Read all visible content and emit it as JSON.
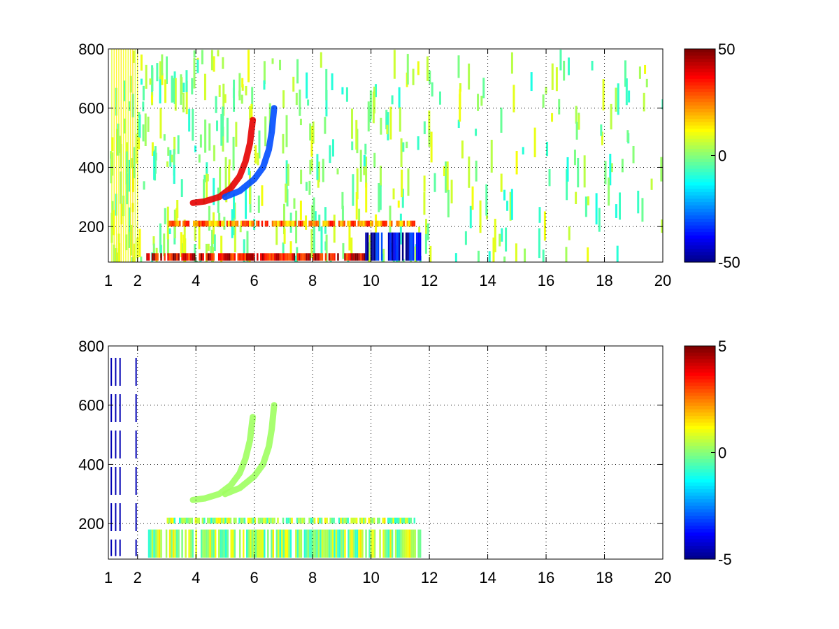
{
  "chart_data": [
    {
      "type": "heatmap",
      "title": "",
      "xlabel": "",
      "ylabel": "",
      "xlim": [
        1,
        20
      ],
      "ylim": [
        80,
        800
      ],
      "xticks": [
        1,
        2,
        4,
        6,
        8,
        10,
        12,
        14,
        16,
        18,
        20
      ],
      "xtick_labels": [
        "1",
        "2",
        "4",
        "6",
        "8",
        "10",
        "12",
        "14",
        "16",
        "18",
        "20"
      ],
      "yticks": [
        200,
        400,
        600,
        800
      ],
      "ytick_labels": [
        "200",
        "400",
        "600",
        "800"
      ],
      "grid": true,
      "colormap": "jet",
      "colorbar": {
        "clim": [
          -50,
          50
        ],
        "tick_labels": [
          "50",
          "0",
          "-50"
        ],
        "ticks": [
          50,
          0,
          -50
        ]
      },
      "features": [
        {
          "kind": "curve",
          "sign": "positive",
          "value": 40,
          "points": [
            [
              3.9,
              280
            ],
            [
              4.3,
              285
            ],
            [
              4.8,
              300
            ],
            [
              5.2,
              330
            ],
            [
              5.5,
              370
            ],
            [
              5.7,
              420
            ],
            [
              5.85,
              480
            ],
            [
              5.95,
              560
            ]
          ]
        },
        {
          "kind": "curve",
          "sign": "negative",
          "value": -30,
          "points": [
            [
              5.0,
              300
            ],
            [
              5.5,
              320
            ],
            [
              6.0,
              360
            ],
            [
              6.3,
              400
            ],
            [
              6.5,
              460
            ],
            [
              6.6,
              520
            ],
            [
              6.68,
              600
            ]
          ]
        },
        {
          "kind": "band",
          "y_range": [
            85,
            110
          ],
          "x_range": [
            2.3,
            9.8
          ],
          "value": 40
        },
        {
          "kind": "band",
          "y_range": [
            85,
            180
          ],
          "x_range": [
            9.8,
            11.7
          ],
          "value": -40
        },
        {
          "kind": "band",
          "y_range": [
            200,
            220
          ],
          "x_range": [
            3.0,
            11.5
          ],
          "value": 25
        }
      ]
    },
    {
      "type": "heatmap",
      "title": "",
      "xlabel": "",
      "ylabel": "",
      "xlim": [
        1,
        20
      ],
      "ylim": [
        80,
        800
      ],
      "xticks": [
        1,
        2,
        4,
        6,
        8,
        10,
        12,
        14,
        16,
        18,
        20
      ],
      "xtick_labels": [
        "1",
        "2",
        "4",
        "6",
        "8",
        "10",
        "12",
        "14",
        "16",
        "18",
        "20"
      ],
      "yticks": [
        200,
        400,
        600,
        800
      ],
      "ytick_labels": [
        "200",
        "400",
        "600",
        "800"
      ],
      "grid": true,
      "colormap": "jet",
      "colorbar": {
        "clim": [
          -5,
          5
        ],
        "tick_labels": [
          "5",
          "0",
          "-5"
        ],
        "ticks": [
          5,
          0,
          -5
        ]
      },
      "features": [
        {
          "kind": "curve",
          "sign": "near-zero",
          "value": 0.3,
          "points": [
            [
              3.9,
              280
            ],
            [
              4.3,
              285
            ],
            [
              4.8,
              300
            ],
            [
              5.2,
              330
            ],
            [
              5.5,
              370
            ],
            [
              5.7,
              420
            ],
            [
              5.85,
              480
            ],
            [
              5.95,
              560
            ]
          ]
        },
        {
          "kind": "curve",
          "sign": "near-zero",
          "value": 0.3,
          "points": [
            [
              5.0,
              300
            ],
            [
              5.5,
              320
            ],
            [
              6.0,
              360
            ],
            [
              6.3,
              400
            ],
            [
              6.5,
              460
            ],
            [
              6.6,
              520
            ],
            [
              6.68,
              600
            ]
          ]
        },
        {
          "kind": "band",
          "y_range": [
            85,
            180
          ],
          "x_range": [
            2.3,
            11.7
          ],
          "value": 0.3
        },
        {
          "kind": "band",
          "y_range": [
            200,
            220
          ],
          "x_range": [
            3.0,
            11.5
          ],
          "value": 0.3
        },
        {
          "kind": "lines",
          "x": [
            1.1,
            1.25,
            1.4,
            1.95
          ],
          "y_range": [
            90,
            760
          ],
          "value": -4.5
        }
      ]
    }
  ]
}
